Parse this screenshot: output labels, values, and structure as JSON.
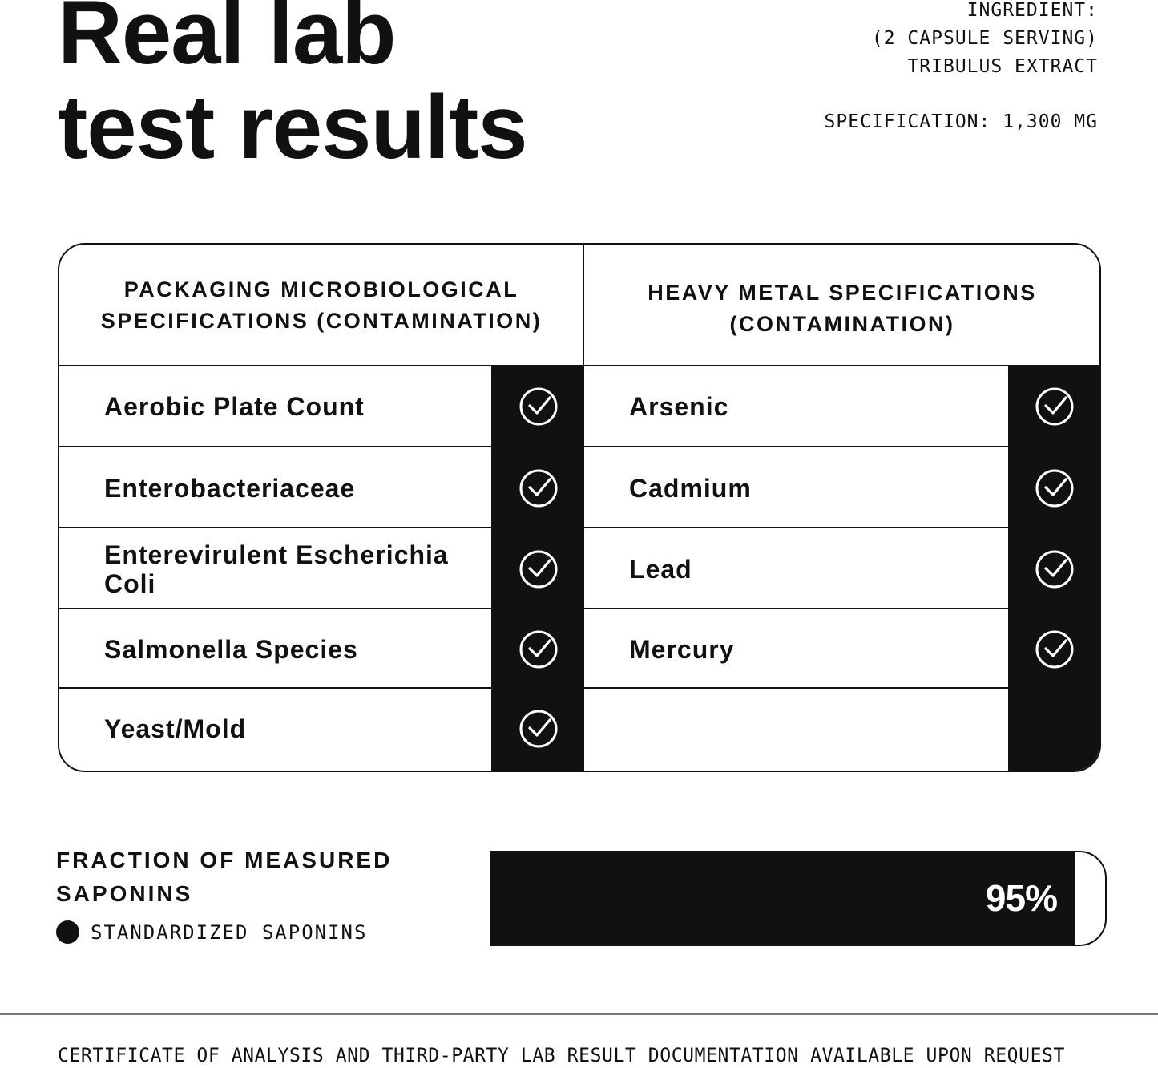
{
  "title_line1": "Real lab",
  "title_line2": "test results",
  "info": {
    "ingredient_label": "INGREDIENT:",
    "serving": "(2 CAPSULE SERVING)",
    "ingredient": "TRIBULUS EXTRACT",
    "specification": "SPECIFICATION: 1,300 MG"
  },
  "table": {
    "left_header": [
      "PACKAGING MICROBIOLOGICAL",
      "SPECIFICATIONS (CONTAMINATION)"
    ],
    "right_header": [
      "HEAVY METAL SPECIFICATIONS",
      "(CONTAMINATION)"
    ],
    "left_rows": [
      {
        "label": "Aerobic Plate Count",
        "passed": true
      },
      {
        "label": "Enterobacteriaceae",
        "passed": true
      },
      {
        "label": "Enterevirulent Escherichia Coli",
        "passed": true
      },
      {
        "label": "Salmonella Species",
        "passed": true
      },
      {
        "label": "Yeast/Mold",
        "passed": true
      }
    ],
    "right_rows": [
      {
        "label": "Arsenic",
        "passed": true
      },
      {
        "label": "Cadmium",
        "passed": true
      },
      {
        "label": "Lead",
        "passed": true
      },
      {
        "label": "Mercury",
        "passed": true
      }
    ],
    "check_icon": "circle-check-icon"
  },
  "saponins": {
    "title_line1": "FRACTION OF MEASURED",
    "title_line2": "SAPONINS",
    "legend": "STANDARDIZED SAPONINS",
    "value_label": "95%",
    "value": 95
  },
  "footer": "CERTIFICATE OF ANALYSIS AND THIRD-PARTY LAB RESULT DOCUMENTATION AVAILABLE UPON REQUEST",
  "colors": {
    "ink": "#111111",
    "background": "#ffffff"
  }
}
